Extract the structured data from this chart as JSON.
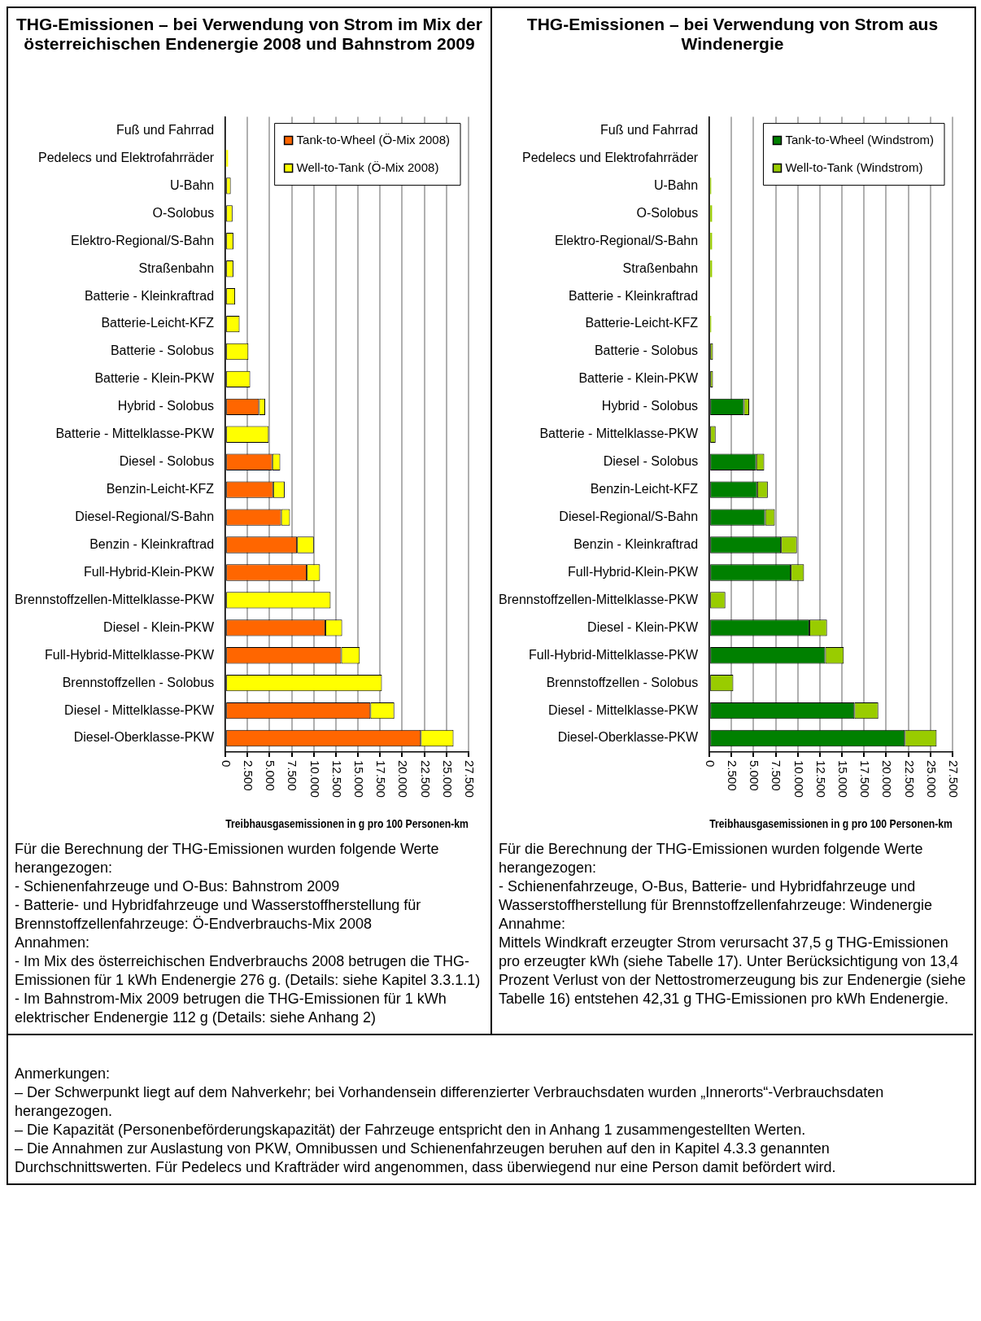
{
  "chart_data": [
    {
      "type": "bar",
      "orientation": "horizontal",
      "stacked": true,
      "title": "THG-Emissionen – bei Verwendung von Strom im Mix der österreichischen Endenergie 2008 und Bahnstrom 2009",
      "xlabel": "Treibhausgasemissionen in g pro 100 Personen-km",
      "categories": [
        "Fuß und Fahrrad",
        "Pedelecs und Elektrofahrräder",
        "U-Bahn",
        "O-Solobus",
        "Elektro-Regional/S-Bahn",
        "Straßenbahn",
        "Batterie - Kleinkraftrad",
        "Batterie-Leicht-KFZ",
        "Batterie - Solobus",
        "Batterie - Klein-PKW",
        "Hybrid - Solobus",
        "Batterie - Mittelklasse-PKW",
        "Diesel - Solobus",
        "Benzin-Leicht-KFZ",
        "Diesel-Regional/S-Bahn",
        "Benzin - Kleinkraftrad",
        "Full-Hybrid-Klein-PKW",
        "Brennstoffzellen-Mittelklasse-PKW",
        "Diesel - Klein-PKW",
        "Full-Hybrid-Mittelklasse-PKW",
        "Brennstoffzellen - Solobus",
        "Diesel - Mittelklasse-PKW",
        "Diesel-Oberklasse-PKW"
      ],
      "series": [
        {
          "name": "Tank-to-Wheel (Ö-Mix 2008)",
          "color": "#ff6600",
          "values": [
            null,
            null,
            null,
            null,
            null,
            null,
            null,
            null,
            null,
            null,
            3800,
            null,
            5300,
            5400,
            6300,
            8100,
            9200,
            null,
            11300,
            13100,
            null,
            16400,
            22100
          ]
        },
        {
          "name": "Well-to-Tank (Ö-Mix 2008)",
          "color": "#ffff00",
          "values": [
            null,
            300,
            600,
            800,
            900,
            900,
            1100,
            1600,
            2600,
            2800,
            700,
            4900,
            900,
            1300,
            1000,
            1900,
            1500,
            11900,
            1900,
            2100,
            17700,
            2700,
            3700
          ]
        }
      ],
      "xlim": [
        0,
        27500
      ],
      "xticks": [
        0,
        {
          "value": 2500,
          "label": "2.500"
        },
        {
          "value": 5000,
          "label": "5.000"
        },
        {
          "value": 7500,
          "label": "7.500"
        },
        {
          "value": 10000,
          "label": "10.000"
        },
        {
          "value": 12500,
          "label": "12.500"
        },
        {
          "value": 15000,
          "label": "15.000"
        },
        {
          "value": 17500,
          "label": "17.500"
        },
        {
          "value": 20000,
          "label": "20.000"
        },
        {
          "value": 22500,
          "label": "22.500"
        },
        {
          "value": 25000,
          "label": "25.000"
        },
        {
          "value": 27500,
          "label": "27.500"
        }
      ],
      "grid": "x",
      "legend": "top right",
      "annotations": [
        "Für die Berechnung der THG-Emissionen wurden folgende Werte herangezogen:",
        "- Schienenfahrzeuge und O-Bus: Bahnstrom 2009",
        "- Batterie- und Hybridfahrzeuge und Wasserstoffherstellung für Brennstoffzellenfahrzeuge: Ö-Endverbrauchs-Mix 2008",
        "Annahmen:",
        "- Im Mix des österreichischen Endverbrauchs 2008 betrugen die THG-Emissionen für 1 kWh Endenergie 276 g. (Details: siehe Kapitel 3.3.1.1)",
        "- Im Bahnstrom-Mix 2009 betrugen die THG-Emissionen für 1 kWh elektrischer Endenergie 112 g (Details: siehe Anhang 2)"
      ]
    },
    {
      "type": "bar",
      "orientation": "horizontal",
      "stacked": true,
      "title": "THG-Emissionen – bei Verwendung von Strom aus Windenergie",
      "xlabel": "Treibhausgasemissionen in g pro 100 Personen-km",
      "categories": [
        "Fuß und Fahrrad",
        "Pedelecs und Elektrofahrräder",
        "U-Bahn",
        "O-Solobus",
        "Elektro-Regional/S-Bahn",
        "Straßenbahn",
        "Batterie - Kleinkraftrad",
        "Batterie-Leicht-KFZ",
        "Batterie - Solobus",
        "Batterie - Klein-PKW",
        "Hybrid - Solobus",
        "Batterie - Mittelklasse-PKW",
        "Diesel - Solobus",
        "Benzin-Leicht-KFZ",
        "Diesel-Regional/S-Bahn",
        "Benzin - Kleinkraftrad",
        "Full-Hybrid-Klein-PKW",
        "Brennstoffzellen-Mittelklasse-PKW",
        "Diesel - Klein-PKW",
        "Full-Hybrid-Mittelklasse-PKW",
        "Brennstoffzellen - Solobus",
        "Diesel - Mittelklasse-PKW",
        "Diesel-Oberklasse-PKW"
      ],
      "series": [
        {
          "name": "Tank-to-Wheel (Windstrom)",
          "color": "#008000",
          "values": [
            null,
            null,
            null,
            null,
            null,
            null,
            null,
            null,
            null,
            null,
            3900,
            null,
            5300,
            5400,
            6300,
            8100,
            9200,
            null,
            11300,
            13100,
            null,
            16400,
            22100
          ]
        },
        {
          "name": "Well-to-Tank (Windstrom)",
          "color": "#99cc00",
          "values": [
            null,
            null,
            200,
            300,
            300,
            300,
            null,
            200,
            400,
            400,
            600,
            700,
            900,
            1200,
            1100,
            1800,
            1500,
            1800,
            2000,
            2100,
            2700,
            2700,
            3600
          ]
        }
      ],
      "xlim": [
        0,
        27500
      ],
      "xticks": [
        0,
        {
          "value": 2500,
          "label": "2.500"
        },
        {
          "value": 5000,
          "label": "5.000"
        },
        {
          "value": 7500,
          "label": "7.500"
        },
        {
          "value": 10000,
          "label": "10.000"
        },
        {
          "value": 12500,
          "label": "12.500"
        },
        {
          "value": 15000,
          "label": "15.000"
        },
        {
          "value": 17500,
          "label": "17.500"
        },
        {
          "value": 20000,
          "label": "20.000"
        },
        {
          "value": 22500,
          "label": "22.500"
        },
        {
          "value": 25000,
          "label": "25.000"
        },
        {
          "value": 27500,
          "label": "27.500"
        }
      ],
      "grid": "x",
      "legend": "top right",
      "annotations": [
        "Für die Berechnung der THG-Emissionen wurden folgende Werte herangezogen:",
        "- Schienenfahrzeuge, O-Bus, Batterie- und Hybridfahrzeuge und Wasserstoffherstellung für Brennstoffzellenfahrzeuge: Windenergie",
        "Annahme:",
        "Mittels Windkraft erzeugter Strom verursacht 37,5 g THG-Emissionen pro erzeugter kWh (siehe Tabelle 17). Unter Berücksichtigung von 13,4 Prozent Verlust von der Nettostromerzeugung bis zur Endenergie (siehe Tabelle 16) entstehen 42,31 g THG-Emissionen pro kWh Endenergie."
      ]
    },
    {
      "type": "other",
      "annotations": [
        "Anmerkungen:",
        "– Der Schwerpunkt liegt auf dem Nahverkehr; bei Vorhandensein differenzierter Verbrauchsdaten wurden „Innerorts“-Verbrauchsdaten herangezogen.",
        "– Die Kapazität (Personenbeförderungskapazität) der Fahrzeuge entspricht den in Anhang 1 zusammengestellten Werten.",
        "– Die Annahmen zur Auslastung von PKW, Omnibussen und Schienenfahrzeugen beruhen auf den in Kapitel 4.3.3 genannten Durchschnittswerten. Für Pedelecs und Krafträder wird angenommen, dass überwiegend nur eine Person damit befördert wird."
      ]
    }
  ]
}
